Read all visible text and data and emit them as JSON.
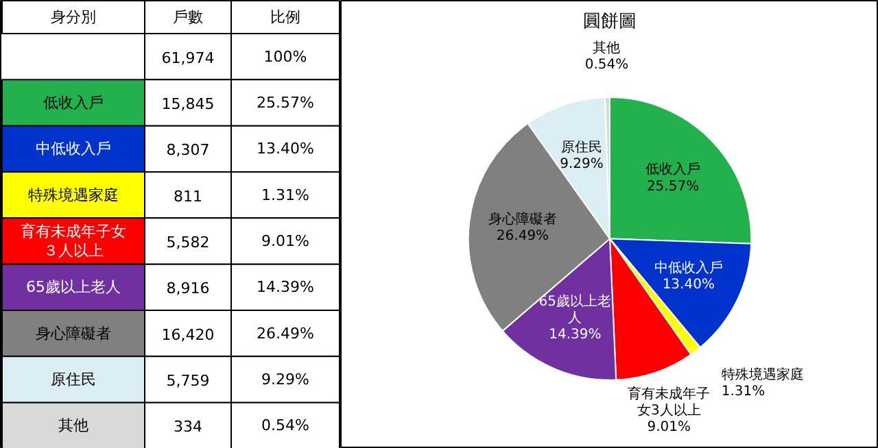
{
  "chart_data": [
    {
      "type": "other",
      "annotations": [
        "身分別",
        "戶數",
        "比例",
        null,
        "61,974",
        "100%",
        "低收入戶",
        "15,845",
        "25.57%",
        "中低收入戶",
        "8,307",
        "13.40%",
        "特殊境遇家庭",
        "811",
        "1.31%",
        "育有未成年子女３人以上",
        "5,582",
        "9.01%",
        "65歲以上老人",
        "8,916",
        "14.39%",
        "身心障礙者",
        "16,420",
        "26.49%",
        "原住民",
        "5,759",
        "9.29%",
        "其他",
        "334",
        "0.54%"
      ]
    },
    {
      "type": "pie",
      "title": "圓餅圖",
      "categories": [
        "低收入戶",
        "中低收入戶",
        "特殊境遇家庭",
        "育有未成年子女3人以上",
        "65歲以上老人",
        "身心障礙者",
        "原住民",
        "其他"
      ],
      "values": [
        25.57,
        13.4,
        1.31,
        9.01,
        14.39,
        26.49,
        9.29,
        0.54
      ],
      "value_labels": [
        "25.57%",
        "13.40%",
        "1.31%",
        "9.01%",
        "14.39%",
        "26.49%",
        "9.29%",
        "0.54%"
      ],
      "colors": [
        "#22b14c",
        "#0033cc",
        "#ffff00",
        "#ff0000",
        "#7030a0",
        "#808080",
        "#daeef3",
        "#d9d9d9"
      ]
    }
  ]
}
